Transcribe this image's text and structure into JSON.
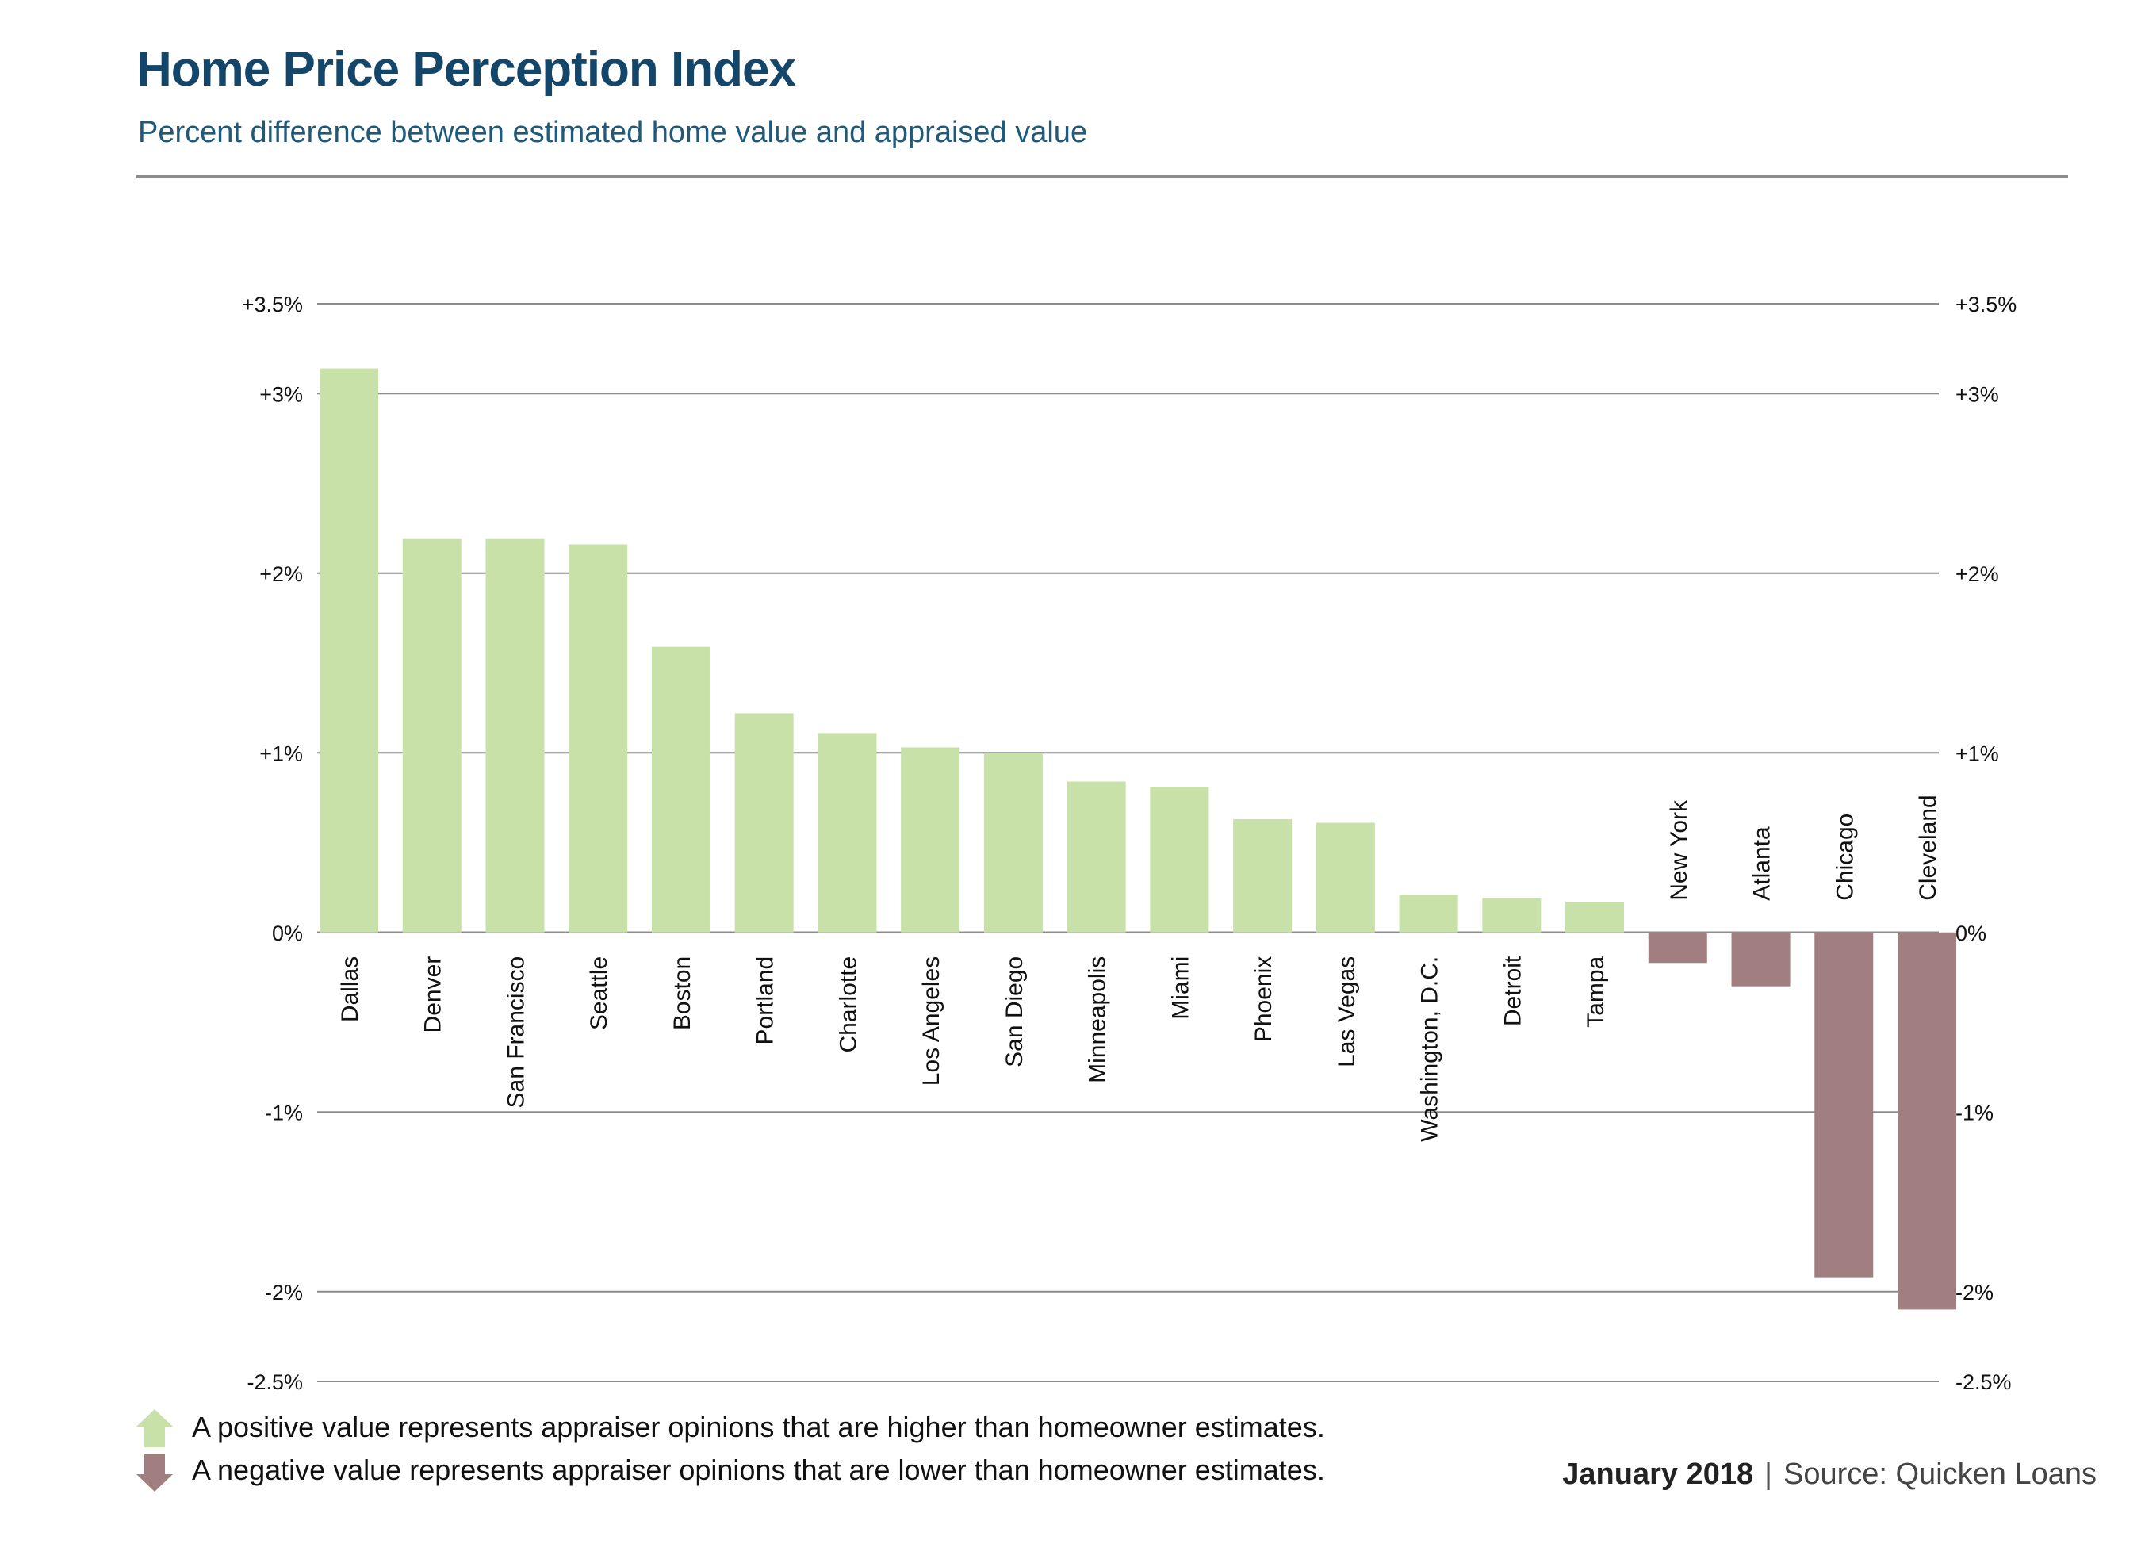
{
  "title": "Home Price Perception Index",
  "subtitle": "Percent difference between estimated home value and appraised value",
  "legend": {
    "positive": "A positive value represents appraiser opinions that are higher than homeowner estimates.",
    "negative": "A negative value represents appraiser opinions that are lower than homeowner estimates."
  },
  "footer": {
    "date": "January 2018",
    "separator": "|",
    "source": "Source: Quicken Loans"
  },
  "colors": {
    "positive": "#c8e1a8",
    "negative": "#a17f80",
    "title": "#14466a",
    "grid": "#8c8c8c"
  },
  "chart_data": {
    "type": "bar",
    "title": "Home Price Perception Index",
    "subtitle": "Percent difference between estimated home value and appraised value",
    "ylim": [
      -2.5,
      3.5
    ],
    "grid": true,
    "y_ticks": [
      {
        "value": 3.5,
        "label": "+3.5%"
      },
      {
        "value": 3,
        "label": "+3%"
      },
      {
        "value": 2,
        "label": "+2%"
      },
      {
        "value": 1,
        "label": "+1%"
      },
      {
        "value": 0,
        "label": "0%"
      },
      {
        "value": -1,
        "label": "-1%"
      },
      {
        "value": -2,
        "label": "-2%"
      },
      {
        "value": -2.5,
        "label": "-2.5%"
      }
    ],
    "categories": [
      "Dallas",
      "Denver",
      "San Francisco",
      "Seattle",
      "Boston",
      "Portland",
      "Charlotte",
      "Los Angeles",
      "San Diego",
      "Minneapolis",
      "Miami",
      "Phoenix",
      "Las Vegas",
      "Washington, D.C.",
      "Detroit",
      "Tampa",
      "New York",
      "Atlanta",
      "Chicago",
      "Cleveland"
    ],
    "values": [
      3.14,
      2.19,
      2.19,
      2.16,
      1.59,
      1.22,
      1.11,
      1.03,
      1.0,
      0.84,
      0.81,
      0.63,
      0.61,
      0.21,
      0.19,
      0.17,
      -0.17,
      -0.3,
      -1.92,
      -2.1
    ]
  }
}
